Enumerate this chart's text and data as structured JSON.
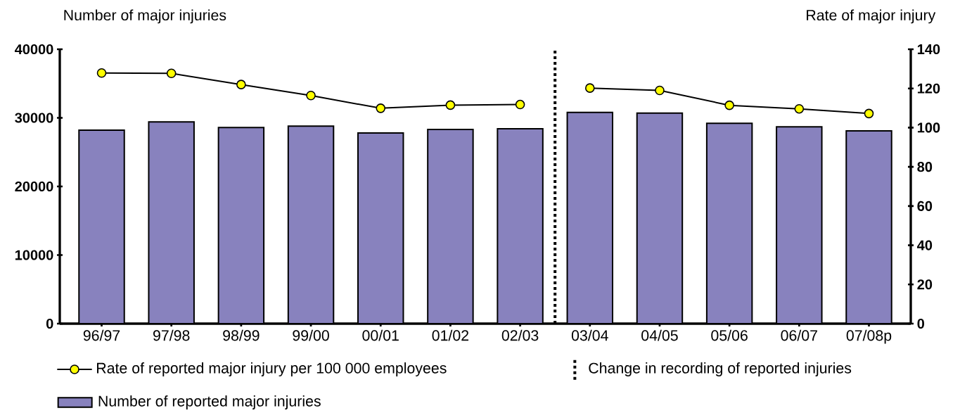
{
  "chart_data": {
    "type": "bar",
    "categories": [
      "96/97",
      "97/98",
      "98/99",
      "99/00",
      "00/01",
      "01/02",
      "02/03",
      "03/04",
      "04/05",
      "05/06",
      "06/07",
      "07/08p"
    ],
    "ylabel": "Number of major injuries",
    "y2label": "Rate of major injury",
    "ylim": [
      0,
      40000
    ],
    "yticks": [
      0,
      10000,
      20000,
      30000,
      40000
    ],
    "y2lim": [
      0,
      140
    ],
    "y2ticks": [
      0,
      20,
      40,
      60,
      80,
      100,
      120,
      140
    ],
    "legend": "bottom",
    "series": [
      {
        "name": "Number of reported major injuries",
        "color": "#8882be",
        "values": [
          28200,
          29400,
          28600,
          28800,
          27800,
          28300,
          28400,
          30800,
          30700,
          29200,
          28700,
          28100
        ]
      },
      {
        "name": "Rate of reported major injury per 100 000 employees",
        "type": "line",
        "axis": "y2",
        "marker": "circle",
        "color": "#ffff00",
        "values": [
          127.9,
          127.7,
          122,
          116.4,
          109.9,
          111.5,
          111.8,
          null,
          null,
          null,
          null,
          null
        ]
      },
      {
        "type": "line",
        "axis": "y2",
        "marker": "circle",
        "color": "#ffff00",
        "values": [
          null,
          null,
          null,
          null,
          null,
          null,
          null,
          120.2,
          119,
          111.4,
          109.6,
          107.2
        ]
      }
    ],
    "annotations": [
      "Change in recording of reported injuries"
    ]
  }
}
